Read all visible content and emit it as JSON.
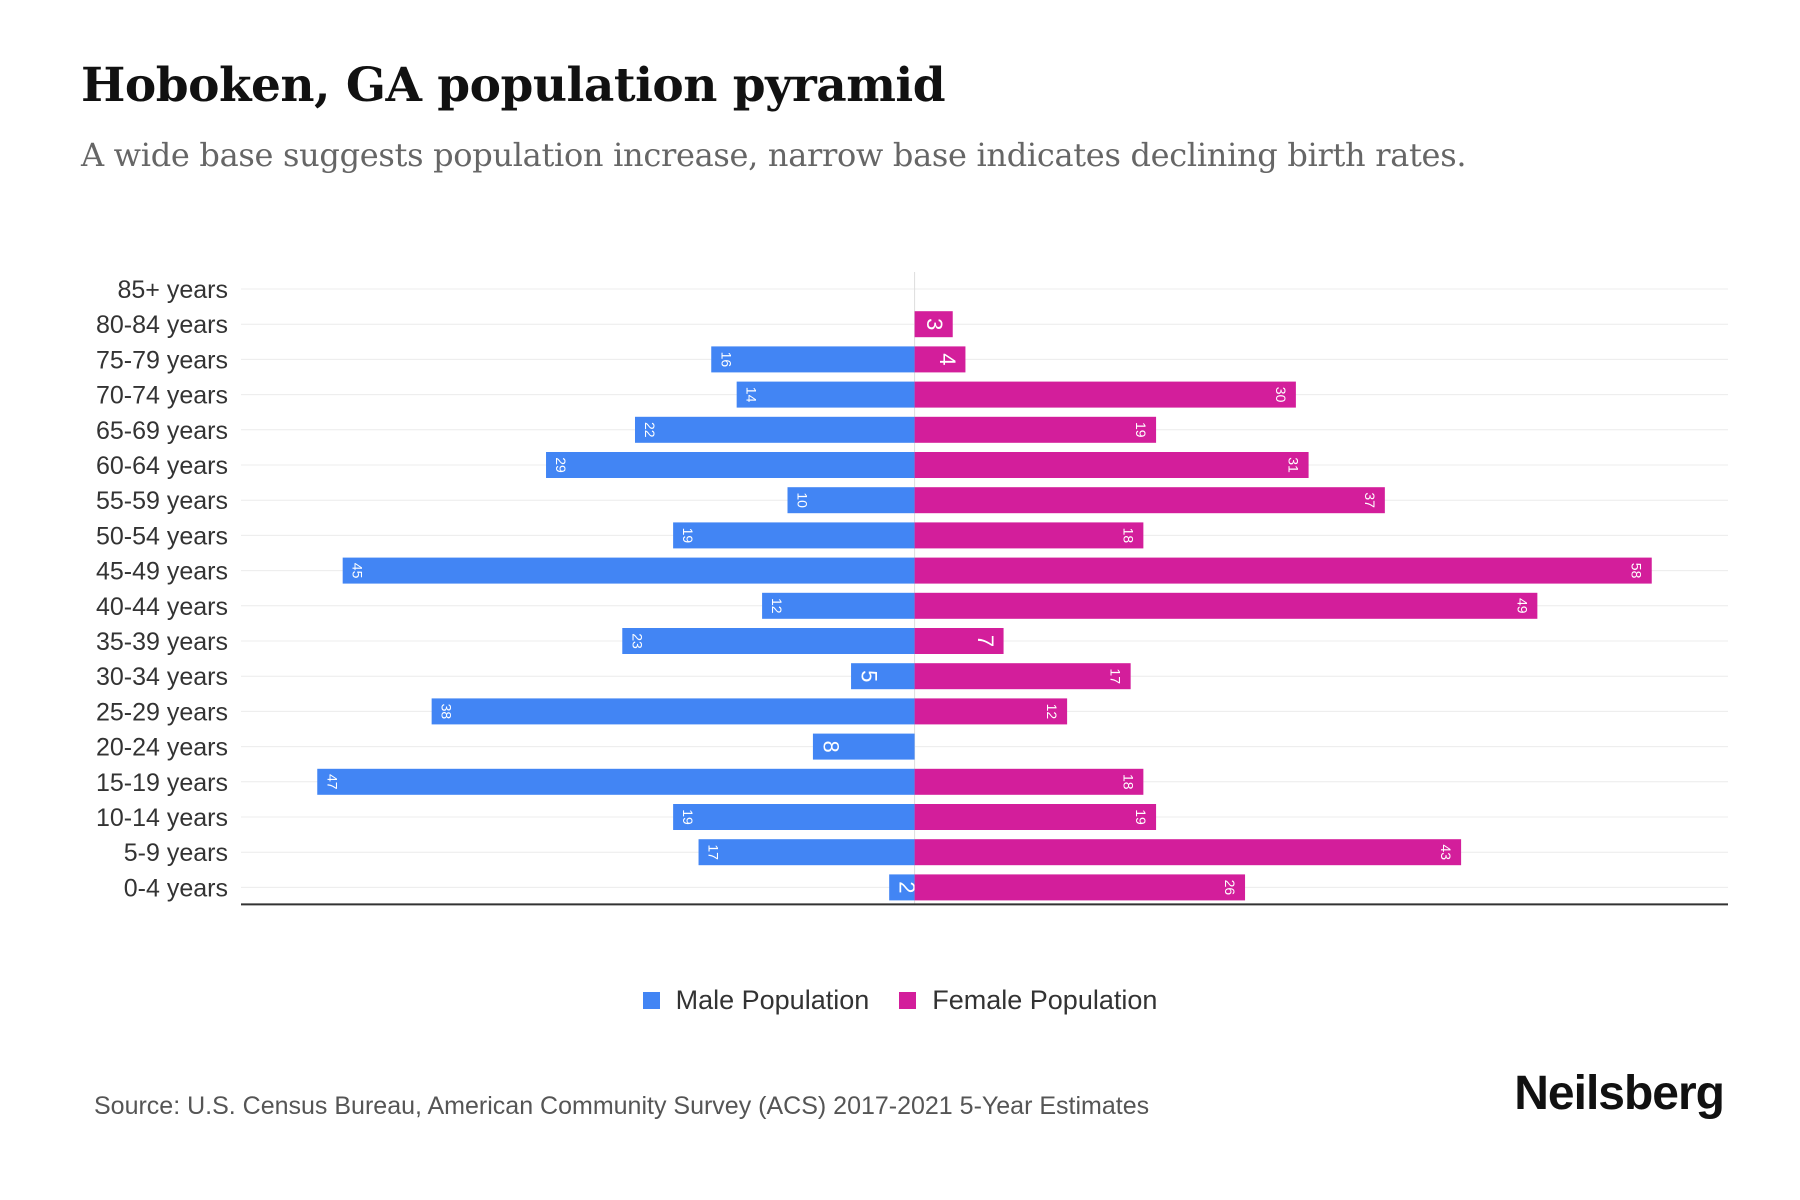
{
  "chart_data": {
    "type": "bar",
    "orientation": "horizontal-pyramid",
    "title": "Hoboken, GA population pyramid",
    "subtitle": "A wide base suggests population increase, narrow base indicates declining birth rates.",
    "categories": [
      "85+ years",
      "80-84 years",
      "75-79 years",
      "70-74 years",
      "65-69 years",
      "60-64 years",
      "55-59 years",
      "50-54 years",
      "45-49 years",
      "40-44 years",
      "35-39 years",
      "30-34 years",
      "25-29 years",
      "20-24 years",
      "15-19 years",
      "10-14 years",
      "5-9 years",
      "0-4 years"
    ],
    "series": [
      {
        "name": "Male Population",
        "color": "#4285f4",
        "values": [
          0,
          0,
          16,
          14,
          22,
          29,
          10,
          19,
          45,
          12,
          23,
          5,
          38,
          8,
          47,
          19,
          17,
          2
        ]
      },
      {
        "name": "Female Population",
        "color": "#d31e9b",
        "values": [
          0,
          3,
          4,
          30,
          19,
          31,
          37,
          18,
          58,
          49,
          7,
          17,
          12,
          0,
          18,
          19,
          43,
          26
        ]
      }
    ],
    "xlim": [
      -53,
      64
    ],
    "grid": true,
    "legend_position": "bottom-center"
  },
  "legend": {
    "male_label": "Male Population",
    "female_label": "Female Population"
  },
  "source": "Source: U.S. Census Bureau, American Community Survey (ACS) 2017-2021 5-Year Estimates",
  "brand": "Neilsberg"
}
